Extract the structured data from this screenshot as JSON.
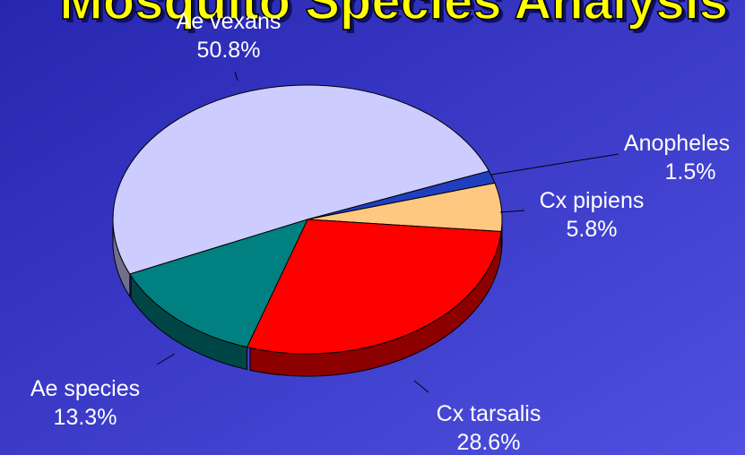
{
  "chart_data": {
    "type": "pie",
    "title": "Mosquito Species Analysis",
    "categories": [
      "Ae vexans",
      "Anopheles",
      "Cx pipiens",
      "Cx tarsalis",
      "Ae species"
    ],
    "values": [
      50.8,
      1.5,
      5.8,
      28.6,
      13.3
    ],
    "value_labels": [
      "50.8%",
      "1.5%",
      "5.8%",
      "28.6%",
      "13.3%"
    ],
    "colors": [
      "#ccccff",
      "#1f3fbf",
      "#ffc880",
      "#ff0000",
      "#008080"
    ]
  }
}
